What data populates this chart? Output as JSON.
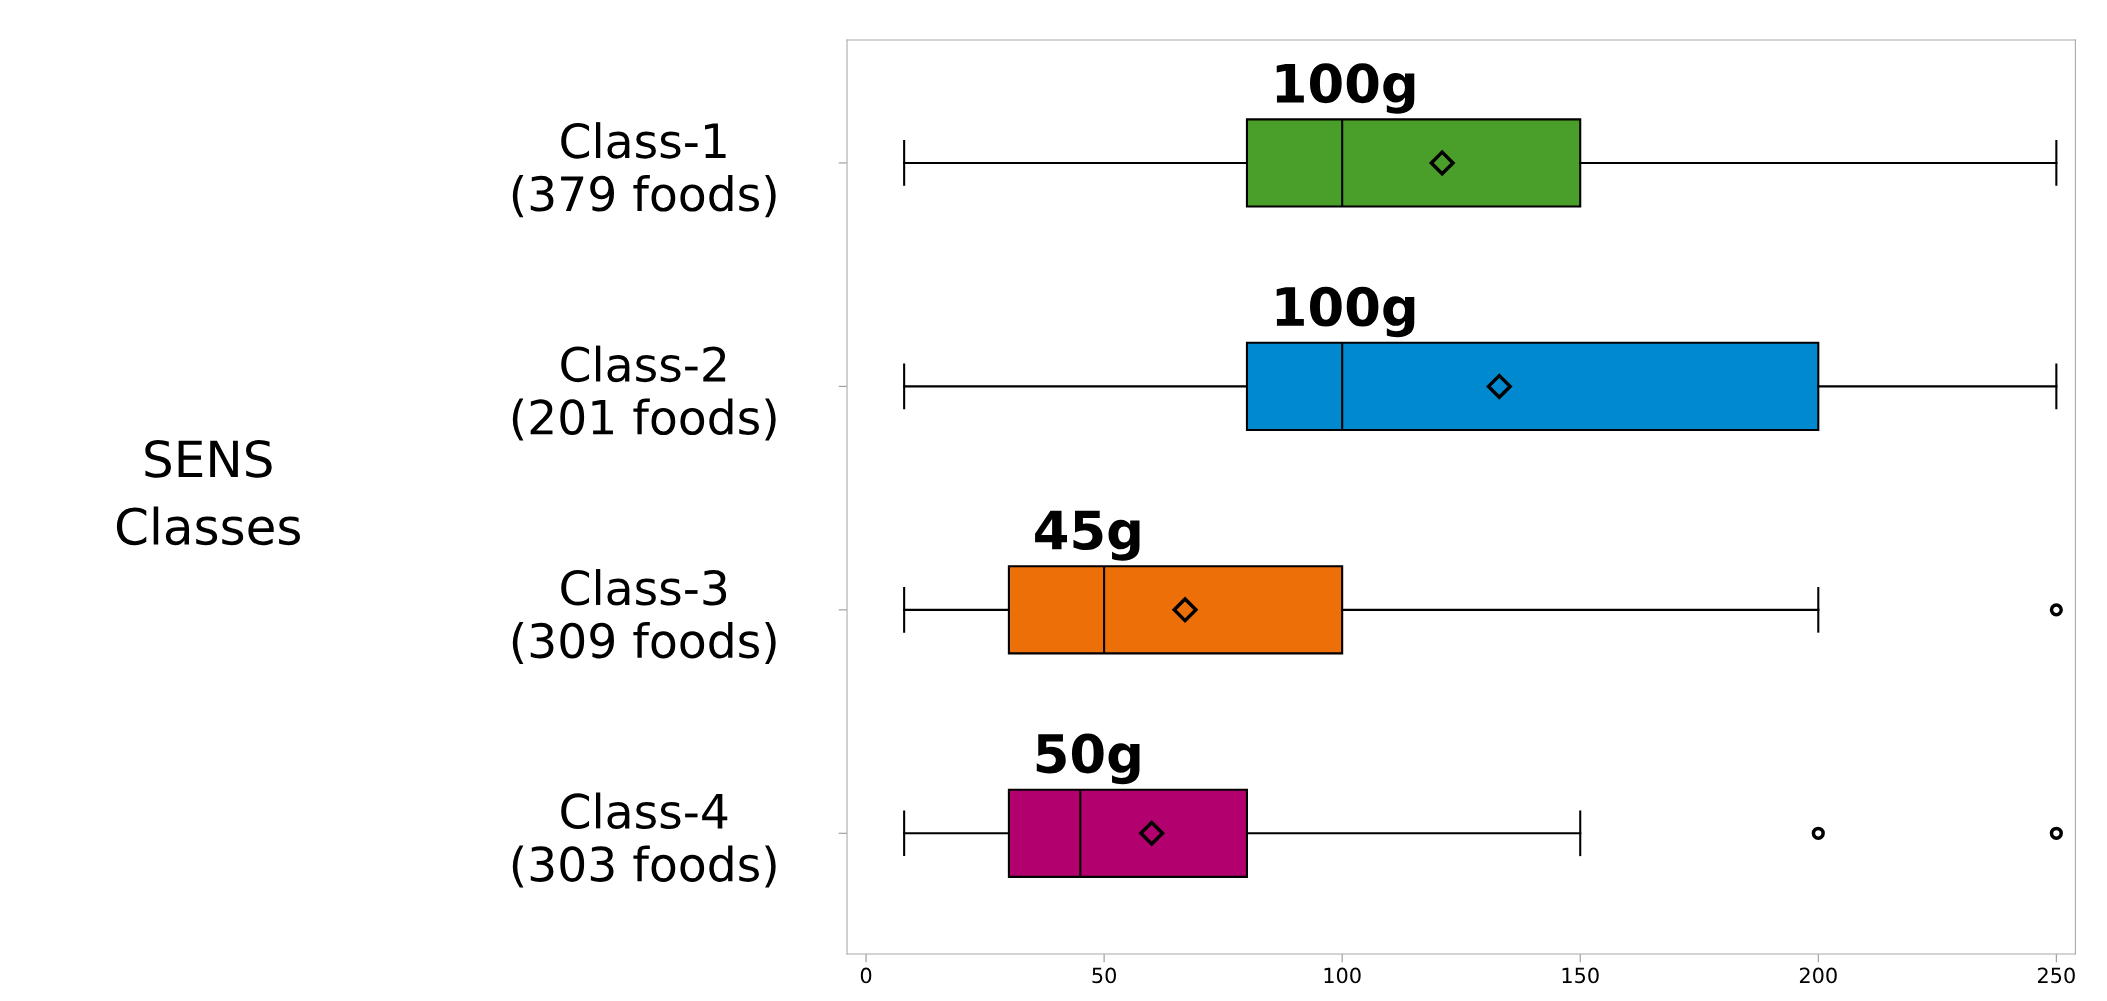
{
  "chart_data": {
    "type": "box",
    "orientation": "horizontal",
    "ylabel": "SENS\nClasses",
    "categories": [
      "Class-1\n(379 foods)",
      "Class-2\n(201 foods)",
      "Class-3\n(309 foods)",
      "Class-4\n(303 foods)"
    ],
    "boxes": [
      {
        "low": 8,
        "q1": 80,
        "median": 100,
        "q3": 150,
        "high": 250,
        "mean": 121
      },
      {
        "low": 8,
        "q1": 80,
        "median": 100,
        "q3": 200,
        "high": 250,
        "mean": 133
      },
      {
        "low": 8,
        "q1": 30,
        "median": 50,
        "q3": 100,
        "high": 200,
        "mean": 67,
        "outliers": [
          250
        ]
      },
      {
        "low": 8,
        "q1": 30,
        "median": 45,
        "q3": 80,
        "high": 150,
        "mean": 60,
        "outliers": [
          200,
          250
        ]
      }
    ],
    "colors": [
      "#4a9e2a",
      "#0089cf",
      "#ec6f07",
      "#b3006f"
    ],
    "annotations": [
      "100g",
      "100g",
      "45g",
      "50g"
    ],
    "xlim": [
      -4,
      254
    ],
    "xticks": [
      0,
      50,
      100,
      150,
      200,
      250
    ],
    "grid": false,
    "marker": "diamond"
  }
}
